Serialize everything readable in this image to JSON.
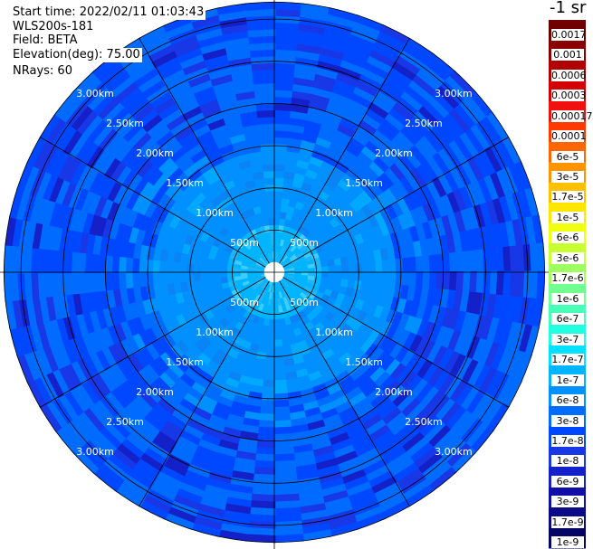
{
  "header": {
    "start_time": "Start time: 2022/02/11 01:03:43",
    "instrument": "WLS200s-181",
    "field": "Field: BETA",
    "elevation": "Elevation(deg): 75.00",
    "nrays": "NRays: 60"
  },
  "chart_data": {
    "type": "heatmap",
    "projection": "polar-ppi",
    "field": "BETA",
    "units": "-1 sr",
    "n_rays": 60,
    "range_rings_km": [
      0.5,
      1.0,
      1.5,
      2.0,
      2.5,
      3.0
    ],
    "range_ring_labels": [
      "500m",
      "1.00km",
      "1.50km",
      "2.00km",
      "2.50km",
      "3.00km"
    ],
    "spokes": 12,
    "value_zones": [
      {
        "range_km": [
          0,
          0.12
        ],
        "value": "no data"
      },
      {
        "range_km": [
          0.12,
          0.55
        ],
        "value": "~1e-7"
      },
      {
        "range_km": [
          0.55,
          1.45
        ],
        "value": "~8e-8"
      },
      {
        "range_km": [
          1.45,
          3.2
        ],
        "value": "~1e-8 to 6e-8"
      }
    ],
    "colorbar": {
      "title": "-1 sr",
      "labels": [
        "0.0017",
        "0.001",
        "0.0006",
        "0.0003",
        "0.00017",
        "0.0001",
        "6e-5",
        "3e-5",
        "1.7e-5",
        "1e-5",
        "6e-6",
        "3e-6",
        "1.7e-6",
        "1e-6",
        "6e-7",
        "3e-7",
        "1.7e-7",
        "1e-7",
        "6e-8",
        "3e-8",
        "1.7e-8",
        "1e-8",
        "6e-9",
        "3e-9",
        "1.7e-9",
        "1e-9"
      ],
      "colors": [
        "#700000",
        "#8a0000",
        "#b00000",
        "#d40000",
        "#f01010",
        "#ff3a00",
        "#ff6600",
        "#ff9400",
        "#ffc000",
        "#ffe600",
        "#f0ff10",
        "#c8ff30",
        "#a0ff60",
        "#70ff90",
        "#48ffb8",
        "#20ffe0",
        "#00e0ff",
        "#00b4ff",
        "#0090ff",
        "#006cff",
        "#0048ff",
        "#1838e8",
        "#1420c8",
        "#1010a8",
        "#0a0a88",
        "#050565"
      ]
    }
  }
}
